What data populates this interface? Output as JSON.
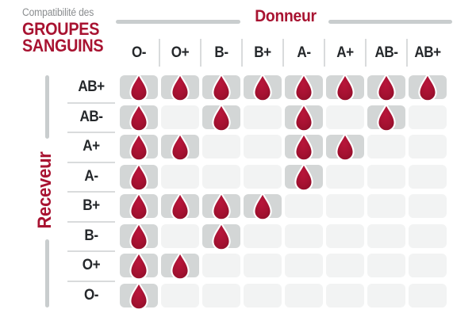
{
  "title": {
    "subtitle": "Compatibilité des",
    "line1": "GROUPES",
    "line2": "SANGUINS"
  },
  "axes": {
    "donor_label": "Donneur",
    "recipient_label": "Receveur"
  },
  "chart_data": {
    "type": "table",
    "title": "Compatibilité des groupes sanguins",
    "columns_axis_label": "Donneur",
    "rows_axis_label": "Receveur",
    "columns": [
      "O-",
      "O+",
      "B-",
      "B+",
      "A-",
      "A+",
      "AB-",
      "AB+"
    ],
    "rows": [
      "AB+",
      "AB-",
      "A+",
      "A-",
      "B+",
      "B-",
      "O+",
      "O-"
    ],
    "matrix": [
      [
        1,
        1,
        1,
        1,
        1,
        1,
        1,
        1
      ],
      [
        1,
        0,
        1,
        0,
        1,
        0,
        1,
        0
      ],
      [
        1,
        1,
        0,
        0,
        1,
        1,
        0,
        0
      ],
      [
        1,
        0,
        0,
        0,
        1,
        0,
        0,
        0
      ],
      [
        1,
        1,
        1,
        1,
        0,
        0,
        0,
        0
      ],
      [
        1,
        0,
        1,
        0,
        0,
        0,
        0,
        0
      ],
      [
        1,
        1,
        0,
        0,
        0,
        0,
        0,
        0
      ],
      [
        1,
        0,
        0,
        0,
        0,
        0,
        0,
        0
      ]
    ],
    "cell_marker": "blood-drop-icon",
    "legend": "drop present = donor compatible with recipient"
  },
  "colors": {
    "brand_red": "#a81331",
    "drop_center": "#b8153a",
    "drop_edge": "#8f0e29",
    "cell_on": "#d3d6d6",
    "cell_off": "#f2f3f3",
    "axis_line": "#c9cdce",
    "divider": "#d9dbdc",
    "subtitle_gray": "#8b8e90",
    "label_dark": "#25282b"
  }
}
